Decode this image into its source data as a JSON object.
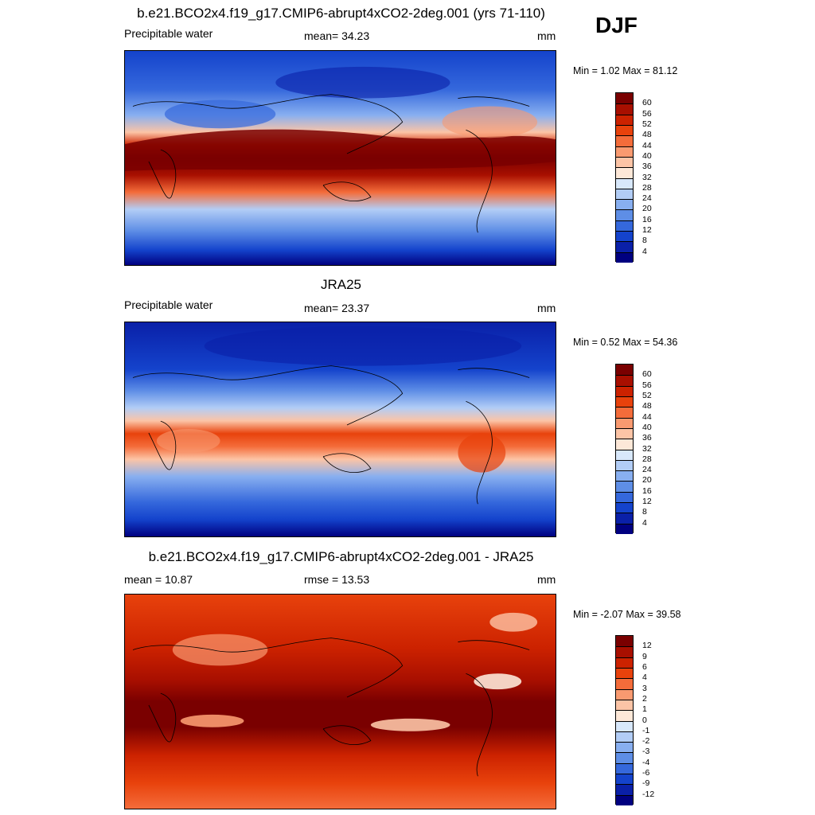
{
  "season": "DJF",
  "panels": [
    {
      "title": "b.e21.BCO2x4.f19_g17.CMIP6-abrupt4xCO2-2deg.001 (yrs 71-110)",
      "left_label": "Precipitable water",
      "center_label": "mean=  34.23",
      "right_label": "mm",
      "minmax": "Min =   1.02 Max =  81.12"
    },
    {
      "title": "JRA25",
      "left_label": "Precipitable water",
      "center_label": "mean=  23.37",
      "right_label": "mm",
      "minmax": "Min =   0.52 Max =  54.36"
    },
    {
      "title": "b.e21.BCO2x4.f19_g17.CMIP6-abrupt4xCO2-2deg.001 - JRA25",
      "left_label": "mean =  10.87",
      "center_label": "rmse =  13.53",
      "right_label": "mm",
      "minmax": "Min =  -2.07 Max =  39.58"
    }
  ],
  "colorbar_field": {
    "labels": [
      "60",
      "56",
      "52",
      "48",
      "44",
      "40",
      "36",
      "32",
      "28",
      "24",
      "20",
      "16",
      "12",
      "8",
      "4"
    ],
    "colors": [
      "#7a0000",
      "#a80f00",
      "#cc2200",
      "#e8420c",
      "#f46c3a",
      "#f99a70",
      "#fcc4a6",
      "#fde8d8",
      "#d8e8fb",
      "#b2cdf6",
      "#88aff0",
      "#5e8ee6",
      "#3568dc",
      "#1443cc",
      "#0a20a8",
      "#000080"
    ]
  },
  "colorbar_diff": {
    "labels": [
      "12",
      "9",
      "6",
      "4",
      "3",
      "2",
      "1",
      "0",
      "-1",
      "-2",
      "-3",
      "-4",
      "-6",
      "-9",
      "-12"
    ],
    "colors": [
      "#7a0000",
      "#a80f00",
      "#cc2200",
      "#e8420c",
      "#f46c3a",
      "#f99a70",
      "#fcc4a6",
      "#fde8d8",
      "#d8e8fb",
      "#b2cdf6",
      "#88aff0",
      "#5e8ee6",
      "#3568dc",
      "#1443cc",
      "#0a20a8",
      "#000080"
    ]
  }
}
